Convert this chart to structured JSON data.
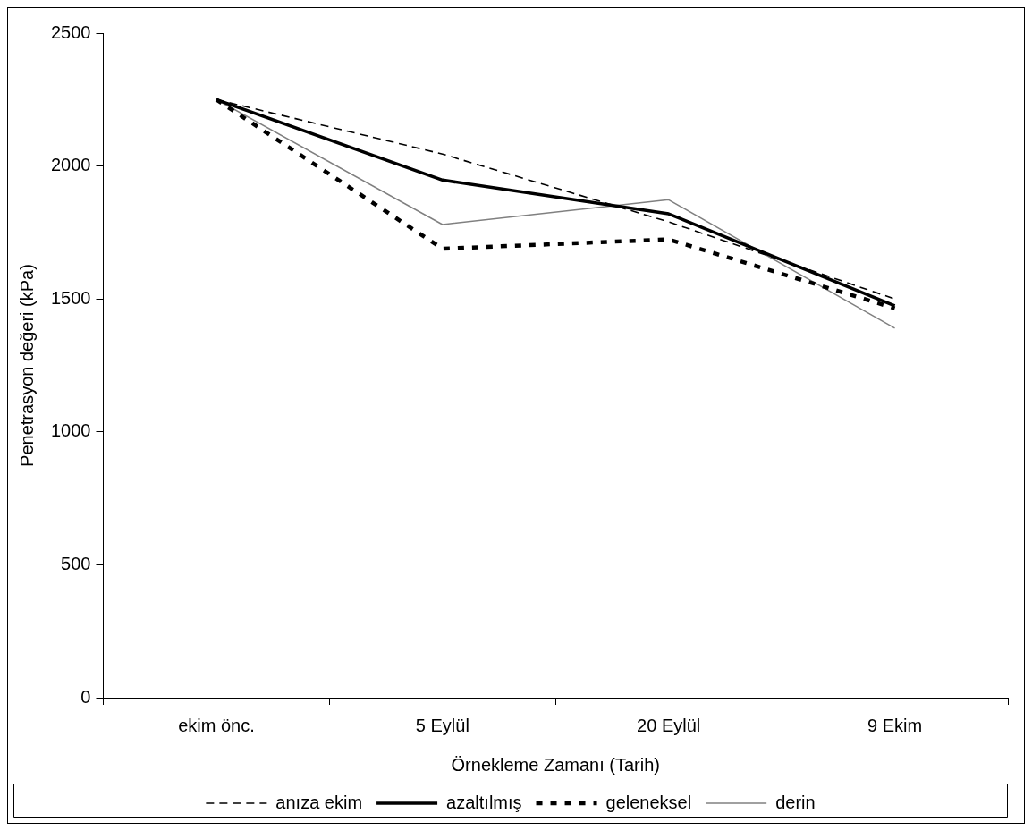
{
  "chart_data": {
    "type": "line",
    "xlabel": "Örnekleme Zamanı (Tarih)",
    "ylabel": "Penetrasyon değeri (kPa)",
    "categories": [
      "ekim önc.",
      "5 Eylül",
      "20 Eylül",
      "9 Ekim"
    ],
    "ylim": [
      0,
      2500
    ],
    "yticks": [
      0,
      500,
      1000,
      1500,
      2000,
      2500
    ],
    "grid": false,
    "legend": "bottom",
    "marker": "none",
    "series": [
      {
        "name": "anıza ekim",
        "color": "#000000",
        "line_style": "dashed",
        "values": [
          2250,
          2045,
          1790,
          1500
        ]
      },
      {
        "name": "azaltılmış",
        "color": "#000000",
        "line_style": "solid",
        "values": [
          2250,
          1947,
          1820,
          1474
        ]
      },
      {
        "name": "geleneksel",
        "color": "#000000",
        "line_style": "dotted",
        "values": [
          2250,
          1689,
          1724,
          1465
        ]
      },
      {
        "name": "derin",
        "color": "#808080",
        "line_style": "solid",
        "values": [
          2250,
          1780,
          1873,
          1390
        ]
      }
    ]
  }
}
